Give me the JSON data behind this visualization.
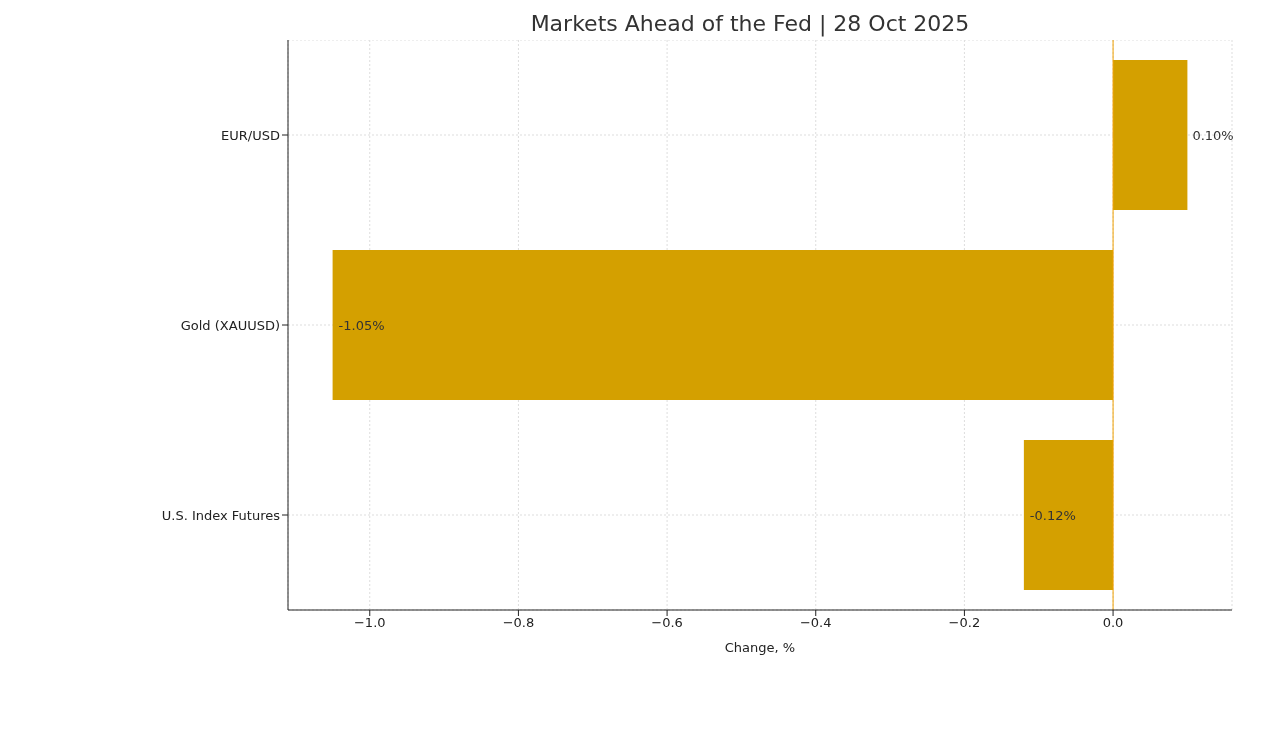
{
  "chart_data": {
    "type": "bar",
    "orientation": "horizontal",
    "title": "Markets Ahead of the Fed | 28 Oct 2025",
    "xlabel": "Change, %",
    "categories": [
      "EUR/USD",
      "Gold (XAUUSD)",
      "U.S. Index Futures"
    ],
    "values": [
      0.1,
      -1.05,
      -0.12
    ],
    "value_labels": [
      "0.10%",
      "-1.05%",
      "-0.12%"
    ],
    "color": "#d4a000",
    "xlim": [
      -1.11,
      0.16
    ],
    "xticks": [
      {
        "value": -1.0,
        "label": "−1.0"
      },
      {
        "value": -0.8,
        "label": "−0.8"
      },
      {
        "value": -0.6,
        "label": "−0.6"
      },
      {
        "value": -0.4,
        "label": "−0.4"
      },
      {
        "value": -0.2,
        "label": "−0.2"
      },
      {
        "value": 0,
        "label": "0.0"
      }
    ],
    "ref_lines": [
      {
        "axis": "x",
        "value": 0,
        "label": null,
        "color": "#f0a000"
      }
    ],
    "grid": true
  }
}
